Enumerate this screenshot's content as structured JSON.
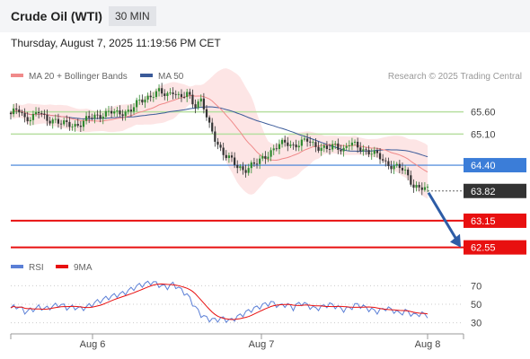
{
  "header": {
    "title": "Crude Oil (WTI)",
    "timeframe": "30 MIN",
    "datetime": "Thursday, August 7, 2025 11:19:56 PM CET"
  },
  "legend": {
    "ma20": "MA 20 + Bollinger Bands",
    "ma50": "MA 50",
    "credit": "Research © 2025 Trading Central"
  },
  "rsi_legend": {
    "rsi": "RSI",
    "ma": "9MA"
  },
  "colors": {
    "ma20": "#f08a8a",
    "ma50": "#3a5a99",
    "bands": "#fde0e0",
    "resistance": "#b7dfa0",
    "pivot": "#3b7dd8",
    "support": "#e81010",
    "candle_up": "#2f8a2f",
    "candle_down": "#333333",
    "rsi": "#5b7fd6",
    "rsi_ma": "#e81010",
    "arrow": "#2d5ca6",
    "current_badge": "#333333"
  },
  "chart_data": [
    {
      "type": "candlestick",
      "title": "Crude Oil (WTI)",
      "interval": "30 MIN",
      "x_ticks": [
        "Aug 6",
        "Aug 7",
        "Aug 8"
      ],
      "ylim": [
        62.3,
        66.3
      ],
      "series": [
        {
          "name": "MA 20 + Bollinger Bands",
          "type": "line"
        },
        {
          "name": "MA 50",
          "type": "line"
        }
      ],
      "close_path": [
        65.55,
        65.65,
        65.45,
        65.5,
        65.6,
        65.4,
        65.45,
        65.35,
        65.3,
        65.3,
        65.35,
        65.45,
        65.5,
        65.55,
        65.6,
        65.55,
        65.6,
        65.65,
        65.8,
        65.9,
        66.0,
        66.05,
        65.95,
        66.1,
        65.9,
        66.0,
        65.75,
        65.9,
        65.3,
        64.95,
        64.7,
        64.55,
        64.35,
        64.3,
        64.4,
        64.45,
        64.6,
        64.75,
        64.85,
        64.9,
        64.85,
        64.9,
        64.95,
        64.85,
        64.8,
        64.75,
        64.85,
        64.75,
        64.9,
        64.8,
        64.75,
        64.7,
        64.6,
        64.45,
        64.4,
        64.35,
        64.2,
        63.95,
        63.9,
        63.82
      ],
      "levels": [
        {
          "value": 65.6,
          "label": "65.60",
          "kind": "resistance"
        },
        {
          "value": 65.1,
          "label": "65.10",
          "kind": "resistance"
        },
        {
          "value": 64.4,
          "label": "64.40",
          "kind": "pivot"
        },
        {
          "value": 63.82,
          "label": "63.82",
          "kind": "current price"
        },
        {
          "value": 63.15,
          "label": "63.15",
          "kind": "support"
        },
        {
          "value": 62.55,
          "label": "62.55",
          "kind": "support"
        }
      ],
      "forecast_arrow": {
        "from": 63.82,
        "to": 62.55,
        "direction": "down"
      },
      "legend_position": "top-left"
    },
    {
      "type": "line",
      "series": [
        {
          "name": "RSI"
        },
        {
          "name": "9MA"
        }
      ],
      "ylim": [
        20,
        80
      ],
      "y_ticks": [
        70,
        50,
        30
      ],
      "rsi_path": [
        46,
        48,
        42,
        44,
        47,
        45,
        48,
        50,
        46,
        47,
        45,
        48,
        52,
        55,
        58,
        60,
        62,
        66,
        70,
        72,
        74,
        71,
        68,
        72,
        66,
        60,
        48,
        38,
        34,
        33,
        35,
        32,
        36,
        40,
        44,
        47,
        50,
        52,
        48,
        50,
        46,
        52,
        49,
        45,
        47,
        50,
        48,
        44,
        46,
        50,
        47,
        44,
        42,
        46,
        44,
        40,
        43,
        38,
        40,
        38
      ]
    }
  ]
}
